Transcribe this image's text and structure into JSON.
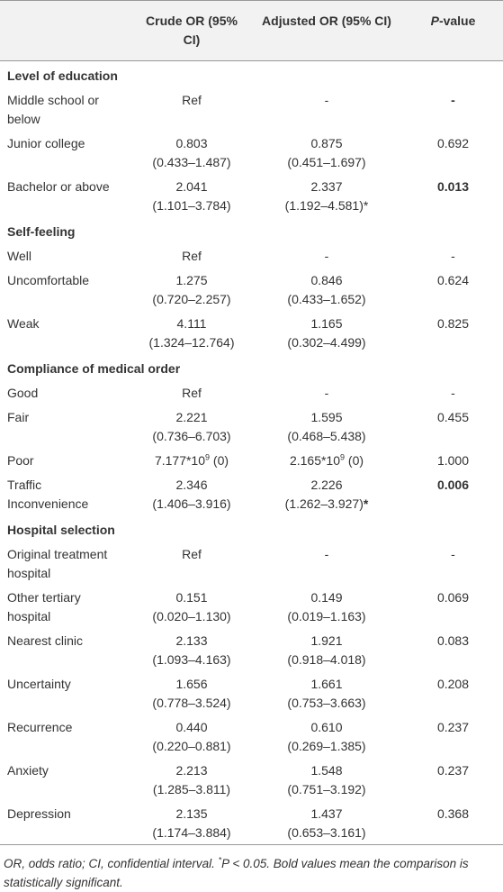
{
  "header": {
    "crude": "Crude OR (95% CI)",
    "adjusted": "Adjusted OR (95% CI)",
    "p_value": [
      {
        "text": "P",
        "italic": true
      },
      {
        "text": "-value"
      }
    ]
  },
  "sections": [
    {
      "title": "Level of education",
      "rows": [
        {
          "label": "Middle school or below",
          "crude": [
            "Ref"
          ],
          "adjusted": [
            "-"
          ],
          "p": [
            [
              {
                "text": "-",
                "bold": true
              }
            ]
          ]
        },
        {
          "label": "Junior college",
          "crude": [
            "0.803",
            "(0.433–1.487)"
          ],
          "adjusted": [
            "0.875",
            "(0.451–1.697)"
          ],
          "p": [
            "0.692"
          ]
        },
        {
          "label": "Bachelor or above",
          "crude": [
            "2.041",
            "(1.101–3.784)"
          ],
          "adjusted": [
            "2.337",
            "(1.192–4.581)*"
          ],
          "p": [
            [
              {
                "text": "0.013",
                "bold": true
              }
            ]
          ]
        }
      ]
    },
    {
      "title": "Self-feeling",
      "rows": [
        {
          "label": "Well",
          "crude": [
            "Ref"
          ],
          "adjusted": [
            "-"
          ],
          "p": [
            "-"
          ]
        },
        {
          "label": "Uncomfortable",
          "crude": [
            "1.275",
            "(0.720–2.257)"
          ],
          "adjusted": [
            "0.846",
            "(0.433–1.652)"
          ],
          "p": [
            "0.624"
          ]
        },
        {
          "label": "Weak",
          "crude": [
            "4.111",
            "(1.324–12.764)"
          ],
          "adjusted": [
            "1.165",
            "(0.302–4.499)"
          ],
          "p": [
            "0.825"
          ]
        }
      ]
    },
    {
      "title": "Compliance of medical order",
      "rows": [
        {
          "label": "Good",
          "crude": [
            "Ref"
          ],
          "adjusted": [
            "-"
          ],
          "p": [
            "-"
          ]
        },
        {
          "label": "Fair",
          "crude": [
            "2.221",
            "(0.736–6.703)"
          ],
          "adjusted": [
            "1.595",
            "(0.468–5.438)"
          ],
          "p": [
            "0.455"
          ]
        },
        {
          "label": "Poor",
          "crude": [
            [
              {
                "text": "7.177*10"
              },
              {
                "text": "9",
                "sup": true
              },
              {
                "text": " (0)"
              }
            ]
          ],
          "adjusted": [
            [
              {
                "text": "2.165*10"
              },
              {
                "text": "9",
                "sup": true
              },
              {
                "text": " (0)"
              }
            ]
          ],
          "p": [
            "1.000"
          ]
        },
        {
          "label": "Traffic Inconvenience",
          "crude": [
            "2.346",
            "(1.406–3.916)"
          ],
          "adjusted": [
            "2.226",
            [
              {
                "text": "(1.262–3.927)"
              },
              {
                "text": "*",
                "bold": true
              }
            ]
          ],
          "p": [
            [
              {
                "text": "0.006",
                "bold": true
              }
            ]
          ]
        }
      ]
    },
    {
      "title": "Hospital selection",
      "rows": [
        {
          "label": "Original treatment hospital",
          "crude": [
            "Ref"
          ],
          "adjusted": [
            "-"
          ],
          "p": [
            "-"
          ]
        },
        {
          "label": "Other tertiary hospital",
          "crude": [
            "0.151",
            "(0.020–1.130)"
          ],
          "adjusted": [
            "0.149",
            "(0.019–1.163)"
          ],
          "p": [
            "0.069"
          ]
        },
        {
          "label": "Nearest clinic",
          "crude": [
            "2.133",
            "(1.093–4.163)"
          ],
          "adjusted": [
            "1.921",
            "(0.918–4.018)"
          ],
          "p": [
            "0.083"
          ]
        },
        {
          "label": "Uncertainty",
          "crude": [
            "1.656",
            "(0.778–3.524)"
          ],
          "adjusted": [
            "1.661",
            "(0.753–3.663)"
          ],
          "p": [
            "0.208"
          ]
        },
        {
          "label": "Recurrence",
          "crude": [
            "0.440",
            "(0.220–0.881)"
          ],
          "adjusted": [
            "0.610",
            "(0.269–1.385)"
          ],
          "p": [
            "0.237"
          ]
        },
        {
          "label": "Anxiety",
          "crude": [
            "2.213",
            "(1.285–3.811)"
          ],
          "adjusted": [
            "1.548",
            "(0.751–3.192)"
          ],
          "p": [
            "0.237"
          ]
        },
        {
          "label": "Depression",
          "crude": [
            "2.135",
            "(1.174–3.884)"
          ],
          "adjusted": [
            "1.437",
            "(0.653–3.161)"
          ],
          "p": [
            "0.368"
          ]
        }
      ]
    }
  ],
  "footnote": [
    {
      "text": "OR, odds ratio; CI, confidential interval. "
    },
    {
      "text": "*",
      "sup": true
    },
    {
      "text": "P < 0.05. Bold values mean the comparison is statistically significant."
    }
  ]
}
